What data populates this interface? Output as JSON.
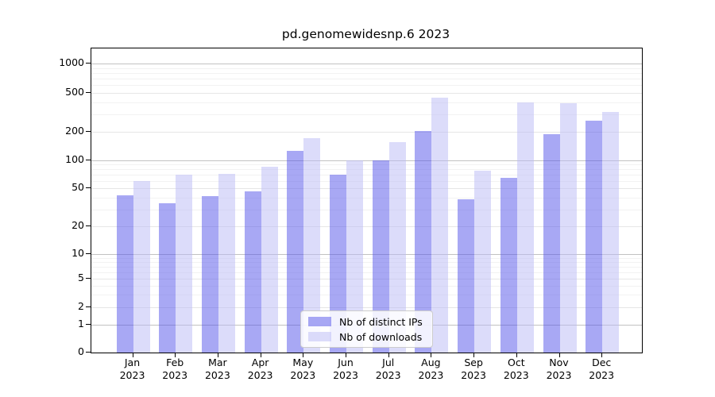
{
  "title": "pd.genomewidesnp.6 2023",
  "chart_data": {
    "type": "bar",
    "title": "pd.genomewidesnp.6 2023",
    "xlabel": "",
    "ylabel": "",
    "x_tick_months": [
      "Jan",
      "Feb",
      "Mar",
      "Apr",
      "May",
      "Jun",
      "Jul",
      "Aug",
      "Sep",
      "Oct",
      "Nov",
      "Dec"
    ],
    "x_tick_year": "2023",
    "categories": [
      "Jan 2023",
      "Feb 2023",
      "Mar 2023",
      "Apr 2023",
      "May 2023",
      "Jun 2023",
      "Jul 2023",
      "Aug 2023",
      "Sep 2023",
      "Oct 2023",
      "Nov 2023",
      "Dec 2023"
    ],
    "series": [
      {
        "name": "Nb of distinct IPs",
        "color": "rgba(81,81,233,0.5)",
        "color_over_white": "#a8a8f4",
        "values": [
          42,
          35,
          41,
          46,
          127,
          70,
          100,
          205,
          38,
          65,
          190,
          260
        ]
      },
      {
        "name": "Nb of downloads",
        "color": "rgba(185,185,245,0.5)",
        "color_over_white": "#dcdcfa",
        "values": [
          60,
          70,
          72,
          85,
          172,
          100,
          155,
          450,
          78,
          400,
          390,
          320
        ]
      }
    ],
    "yscale": "symlog",
    "yticks": [
      0,
      1,
      2,
      5,
      10,
      20,
      50,
      100,
      200,
      500,
      1000
    ],
    "ylim": [
      0,
      1430
    ],
    "grid": true,
    "legend_position": "lower center"
  }
}
